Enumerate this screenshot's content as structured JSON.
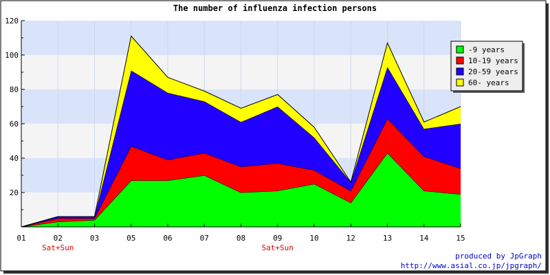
{
  "chart_data": {
    "type": "area",
    "stacked": true,
    "title": "The number of influenza infection persons",
    "categories": [
      "01",
      "02",
      "03",
      "05",
      "06",
      "07",
      "08",
      "09",
      "10",
      "12",
      "13",
      "14",
      "15"
    ],
    "category_notes": [
      "",
      "Sat+Sun",
      "",
      "",
      "",
      "",
      "",
      "Sat+Sun",
      "",
      "",
      "",
      "",
      ""
    ],
    "series": [
      {
        "name": "-9 years",
        "color": "#00ff00",
        "values": [
          0,
          3,
          4,
          27,
          27,
          30,
          20,
          21,
          25,
          14,
          43,
          21,
          19
        ]
      },
      {
        "name": "10-19 years",
        "color": "#ff0000",
        "values": [
          0,
          2,
          1,
          20,
          12,
          13,
          15,
          16,
          8,
          7,
          20,
          20,
          15
        ]
      },
      {
        "name": "20-59 years",
        "color": "#2200ff",
        "values": [
          0,
          1,
          1,
          44,
          39,
          30,
          26,
          33,
          19,
          5,
          30,
          16,
          26
        ]
      },
      {
        "name": "60- years",
        "color": "#ffff00",
        "values": [
          0,
          0,
          0,
          20,
          9,
          6,
          8,
          7,
          6,
          0,
          14,
          4,
          10
        ]
      }
    ],
    "ylim": [
      0,
      120
    ],
    "yticks": [
      20,
      40,
      60,
      80,
      100,
      120
    ],
    "grid": true,
    "legend_position": "right",
    "footer": {
      "line1": "produced by JpGraph",
      "line2": "http://www.asial.co.jp/jpgraph/"
    }
  }
}
